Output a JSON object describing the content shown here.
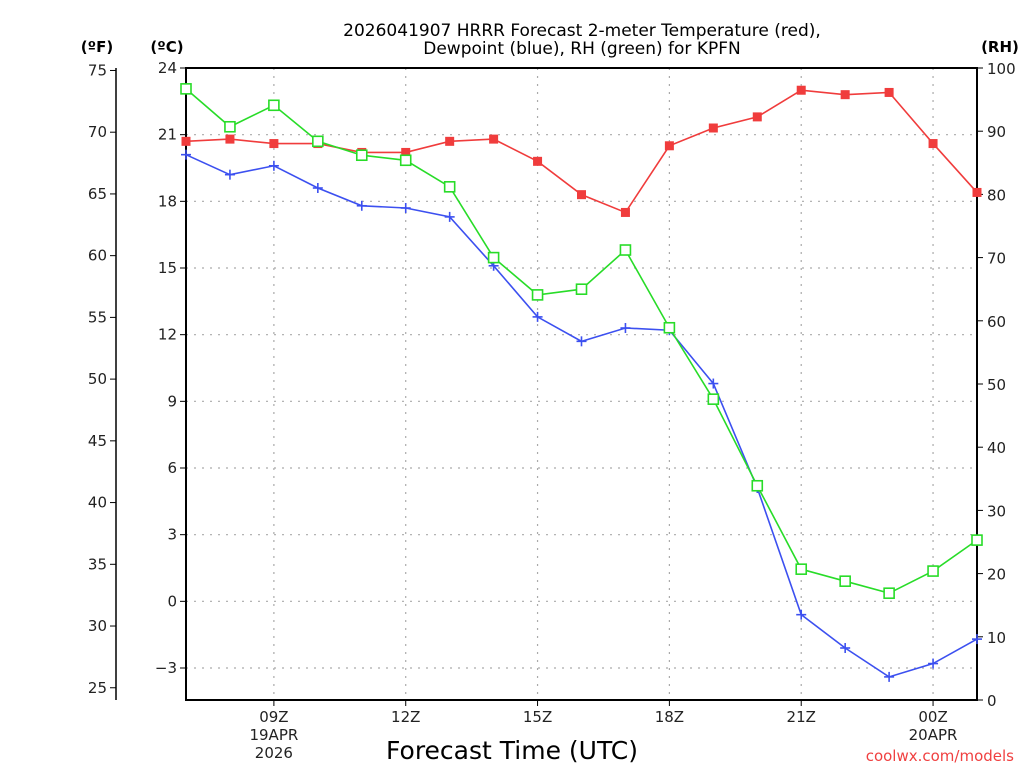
{
  "chart_data": {
    "type": "line",
    "title_lines": [
      "2026041907 HRRR Forecast 2-meter Temperature (red),",
      "Dewpoint (blue), RH (green) for KPFN"
    ],
    "xlabel": "Forecast Time (UTC)",
    "credit": "coolwx.com/models",
    "x": [
      "07Z",
      "08Z",
      "09Z",
      "10Z",
      "11Z",
      "12Z",
      "13Z",
      "14Z",
      "15Z",
      "16Z",
      "17Z",
      "18Z",
      "19Z",
      "20Z",
      "21Z",
      "22Z",
      "23Z",
      "00Z",
      "01Z"
    ],
    "x_ticks": [
      {
        "hour_index": 2,
        "lines": [
          "09Z",
          "19APR",
          "2026"
        ]
      },
      {
        "hour_index": 5,
        "lines": [
          "12Z"
        ]
      },
      {
        "hour_index": 8,
        "lines": [
          "15Z"
        ]
      },
      {
        "hour_index": 11,
        "lines": [
          "18Z"
        ]
      },
      {
        "hour_index": 14,
        "lines": [
          "21Z"
        ]
      },
      {
        "hour_index": 17,
        "lines": [
          "00Z",
          "20APR"
        ]
      }
    ],
    "axes": {
      "fahrenheit": {
        "label": "(ºF)",
        "ticks": [
          25,
          30,
          35,
          40,
          45,
          50,
          55,
          60,
          65,
          70,
          75
        ]
      },
      "celsius": {
        "label": "(ºC)",
        "ticks": [
          -3,
          0,
          3,
          6,
          9,
          12,
          15,
          18,
          21,
          24
        ],
        "ylim": [
          -4.44,
          24
        ]
      },
      "rh": {
        "label": "(RH)",
        "ticks": [
          0,
          10,
          20,
          30,
          40,
          50,
          60,
          70,
          80,
          90,
          100
        ],
        "ylim": [
          0,
          100
        ]
      }
    },
    "grid": true,
    "series": [
      {
        "name": "2-meter Temperature",
        "axis": "celsius",
        "color": "#f03c3c",
        "marker": "filled-square",
        "values": [
          20.7,
          20.8,
          20.6,
          20.6,
          20.2,
          20.2,
          20.7,
          20.8,
          19.8,
          18.3,
          17.5,
          20.5,
          21.3,
          21.8,
          23.0,
          22.8,
          22.9,
          20.6,
          18.4
        ]
      },
      {
        "name": "Dewpoint",
        "axis": "celsius",
        "color": "#3c50f0",
        "marker": "plus",
        "values": [
          20.1,
          19.2,
          19.6,
          18.6,
          17.8,
          17.7,
          17.3,
          15.1,
          12.8,
          11.7,
          12.3,
          12.2,
          9.8,
          5.1,
          -0.6,
          -2.1,
          -3.4,
          -2.8,
          -1.7
        ]
      },
      {
        "name": "RH",
        "axis": "rh",
        "color": "#28dc28",
        "marker": "open-square",
        "values": [
          96.7,
          90.7,
          94.1,
          88.4,
          86.2,
          85.4,
          81.2,
          70.0,
          64.1,
          65.0,
          71.2,
          58.9,
          47.6,
          33.9,
          20.7,
          18.8,
          16.9,
          20.4,
          25.3
        ]
      }
    ]
  }
}
